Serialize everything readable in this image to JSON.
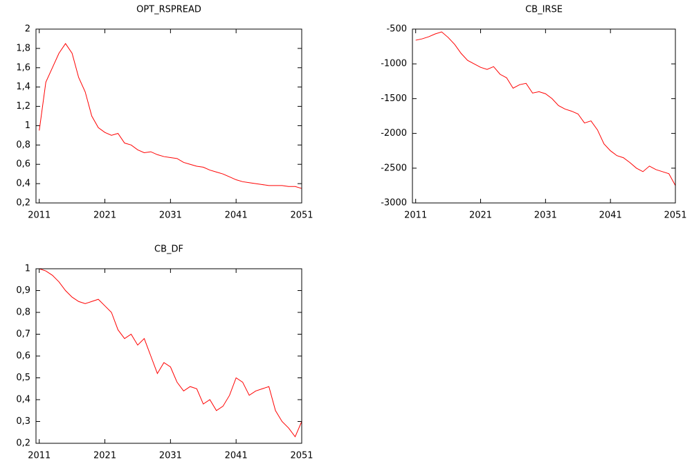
{
  "chart_data": [
    {
      "type": "line",
      "title": "OPT_RSPREAD",
      "color": "#ff0000",
      "x": [
        2011,
        2012,
        2013,
        2014,
        2015,
        2016,
        2017,
        2018,
        2019,
        2020,
        2021,
        2022,
        2023,
        2024,
        2025,
        2026,
        2027,
        2028,
        2029,
        2030,
        2031,
        2032,
        2033,
        2034,
        2035,
        2036,
        2037,
        2038,
        2039,
        2040,
        2041,
        2042,
        2043,
        2044,
        2045,
        2046,
        2047,
        2048,
        2049,
        2050,
        2051
      ],
      "values": [
        0.95,
        1.45,
        1.6,
        1.75,
        1.85,
        1.75,
        1.5,
        1.35,
        1.1,
        0.98,
        0.93,
        0.9,
        0.92,
        0.82,
        0.8,
        0.75,
        0.72,
        0.73,
        0.7,
        0.68,
        0.67,
        0.66,
        0.62,
        0.6,
        0.58,
        0.57,
        0.54,
        0.52,
        0.5,
        0.47,
        0.44,
        0.42,
        0.41,
        0.4,
        0.39,
        0.38,
        0.38,
        0.38,
        0.37,
        0.37,
        0.35
      ],
      "xlim": [
        2010.5,
        2051
      ],
      "xticks": [
        2011,
        2021,
        2031,
        2041,
        2051
      ],
      "ylim": [
        0.2,
        2
      ],
      "yticks": [
        {
          "value": 0.2,
          "label": "0,2"
        },
        {
          "value": 0.4,
          "label": "0,4"
        },
        {
          "value": 0.6,
          "label": "0,6"
        },
        {
          "value": 0.8,
          "label": "0,8"
        },
        1,
        {
          "value": 1.2,
          "label": "1,2"
        },
        {
          "value": 1.4,
          "label": "1,4"
        },
        {
          "value": 1.6,
          "label": "1,6"
        },
        {
          "value": 1.8,
          "label": "1,8"
        },
        2
      ]
    },
    {
      "type": "line",
      "title": "CB_IRSE",
      "color": "#ff0000",
      "x": [
        2011,
        2012,
        2013,
        2014,
        2015,
        2016,
        2017,
        2018,
        2019,
        2020,
        2021,
        2022,
        2023,
        2024,
        2025,
        2026,
        2027,
        2028,
        2029,
        2030,
        2031,
        2032,
        2033,
        2034,
        2035,
        2036,
        2037,
        2038,
        2039,
        2040,
        2041,
        2042,
        2043,
        2044,
        2045,
        2046,
        2047,
        2048,
        2049,
        2050,
        2051
      ],
      "values": [
        -660,
        -640,
        -610,
        -570,
        -540,
        -620,
        -720,
        -850,
        -950,
        -1000,
        -1050,
        -1080,
        -1040,
        -1150,
        -1200,
        -1350,
        -1300,
        -1280,
        -1420,
        -1400,
        -1430,
        -1500,
        -1600,
        -1650,
        -1680,
        -1720,
        -1850,
        -1820,
        -1950,
        -2150,
        -2250,
        -2320,
        -2350,
        -2420,
        -2500,
        -2550,
        -2470,
        -2520,
        -2550,
        -2580,
        -2750
      ],
      "xlim": [
        2010.5,
        2051
      ],
      "xticks": [
        2011,
        2021,
        2031,
        2041,
        2051
      ],
      "ylim": [
        -3000,
        -500
      ],
      "yticks": [
        -3000,
        -2500,
        -2000,
        -1500,
        -1000,
        -500
      ]
    },
    {
      "type": "line",
      "title": "CB_DF",
      "color": "#ff0000",
      "x": [
        2011,
        2012,
        2013,
        2014,
        2015,
        2016,
        2017,
        2018,
        2019,
        2020,
        2021,
        2022,
        2023,
        2024,
        2025,
        2026,
        2027,
        2028,
        2029,
        2030,
        2031,
        2032,
        2033,
        2034,
        2035,
        2036,
        2037,
        2038,
        2039,
        2040,
        2041,
        2042,
        2043,
        2044,
        2045,
        2046,
        2047,
        2048,
        2049,
        2050,
        2051
      ],
      "values": [
        1.0,
        0.99,
        0.97,
        0.94,
        0.9,
        0.87,
        0.85,
        0.84,
        0.85,
        0.86,
        0.83,
        0.8,
        0.72,
        0.68,
        0.7,
        0.65,
        0.68,
        0.6,
        0.52,
        0.57,
        0.55,
        0.48,
        0.44,
        0.46,
        0.45,
        0.38,
        0.4,
        0.35,
        0.37,
        0.42,
        0.5,
        0.48,
        0.42,
        0.44,
        0.45,
        0.46,
        0.35,
        0.3,
        0.27,
        0.23,
        0.3
      ],
      "xlim": [
        2010.5,
        2051
      ],
      "xticks": [
        2011,
        2021,
        2031,
        2041,
        2051
      ],
      "ylim": [
        0.2,
        1
      ],
      "yticks": [
        {
          "value": 0.2,
          "label": "0,2"
        },
        {
          "value": 0.3,
          "label": "0,3"
        },
        {
          "value": 0.4,
          "label": "0,4"
        },
        {
          "value": 0.5,
          "label": "0,5"
        },
        {
          "value": 0.6,
          "label": "0,6"
        },
        {
          "value": 0.7,
          "label": "0,7"
        },
        {
          "value": 0.8,
          "label": "0,8"
        },
        {
          "value": 0.9,
          "label": "0,9"
        },
        1
      ]
    }
  ]
}
